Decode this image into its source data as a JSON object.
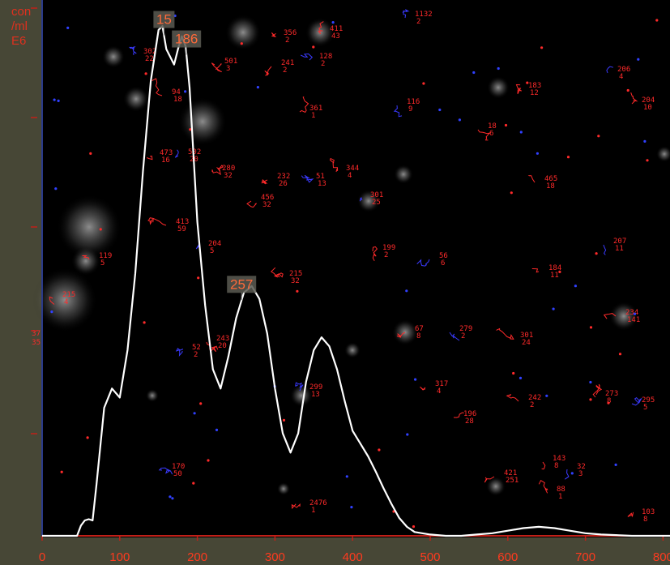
{
  "unit_label": [
    "con",
    "/ml",
    "E6"
  ],
  "chart_data": {
    "type": "line",
    "title": "",
    "xlabel": "",
    "ylabel": "con /ml E6",
    "xlim": [
      0,
      820
    ],
    "x_ticks": [
      0,
      100,
      200,
      300,
      400,
      500,
      600,
      700,
      800
    ],
    "grid": false,
    "series": [
      {
        "x": [
          0,
          45,
          50,
          55,
          60,
          65,
          70,
          80,
          90,
          100,
          110,
          120,
          130,
          140,
          150,
          155,
          160,
          170,
          175,
          180,
          185,
          190,
          200,
          210,
          220,
          230,
          240,
          250,
          260,
          270,
          280,
          290,
          300,
          310,
          320,
          330,
          340,
          350,
          360,
          370,
          380,
          390,
          400,
          410,
          420,
          430,
          440,
          450,
          460,
          470,
          480,
          500,
          520,
          540,
          560,
          580,
          600,
          620,
          640,
          660,
          680,
          700,
          720,
          760,
          820
        ],
        "y": [
          0,
          0,
          8,
          12,
          13,
          12,
          40,
          100,
          115,
          108,
          145,
          205,
          285,
          355,
          395,
          398,
          380,
          368,
          380,
          390,
          382,
          350,
          245,
          180,
          130,
          115,
          140,
          170,
          190,
          195,
          185,
          158,
          115,
          80,
          65,
          80,
          120,
          145,
          155,
          148,
          130,
          105,
          82,
          72,
          62,
          50,
          37,
          25,
          14,
          7,
          3,
          1,
          0,
          0,
          1,
          2,
          4,
          6,
          7,
          6,
          4,
          2,
          1,
          0,
          0
        ]
      }
    ],
    "ylim": [
      0,
      420
    ],
    "peak_labels": [
      {
        "text": "15",
        "x": 157
      },
      {
        "text": "186",
        "x": 186
      },
      {
        "text": "257",
        "x": 257
      }
    ],
    "y_tick_labels": [
      "37",
      "35"
    ]
  },
  "track_labels": [
    [
      "1132",
      "2"
    ],
    [
      "356",
      "2"
    ],
    [
      "411",
      "43"
    ],
    [
      "302",
      "22"
    ],
    [
      "501",
      "3"
    ],
    [
      "241",
      "2"
    ],
    [
      "128",
      "2"
    ],
    [
      "94",
      "18"
    ],
    [
      "361",
      "1"
    ],
    [
      "116",
      "9"
    ],
    [
      "18",
      "6"
    ],
    [
      "183",
      "12"
    ],
    [
      "206",
      "4"
    ],
    [
      "204",
      "10"
    ],
    [
      "473",
      "16"
    ],
    [
      "502",
      "20"
    ],
    [
      "280",
      "32"
    ],
    [
      "232",
      "26"
    ],
    [
      "51",
      "13"
    ],
    [
      "344",
      "4"
    ],
    [
      "456",
      "32"
    ],
    [
      "301",
      "25"
    ],
    [
      "465",
      "18"
    ],
    [
      "413",
      "59"
    ],
    [
      "204",
      "5"
    ],
    [
      "119",
      "5"
    ],
    [
      "199",
      "2"
    ],
    [
      "56",
      "6"
    ],
    [
      "215",
      "32"
    ],
    [
      "184",
      "11"
    ],
    [
      "207",
      "11"
    ],
    [
      "215",
      "4"
    ],
    [
      "67",
      "8"
    ],
    [
      "279",
      "2"
    ],
    [
      "301",
      "24"
    ],
    [
      "234",
      "141"
    ],
    [
      "52",
      "2"
    ],
    [
      "243",
      "20"
    ],
    [
      "317",
      "4"
    ],
    [
      "299",
      "13"
    ],
    [
      "242",
      "2"
    ],
    [
      "273",
      "8"
    ],
    [
      "295",
      "5"
    ],
    [
      "196",
      "28"
    ],
    [
      "143",
      "8"
    ],
    [
      "32",
      "3"
    ],
    [
      "421",
      "251"
    ],
    [
      "88",
      "1"
    ],
    [
      "170",
      "50"
    ],
    [
      "2476",
      "1"
    ],
    [
      "103",
      "8"
    ]
  ]
}
